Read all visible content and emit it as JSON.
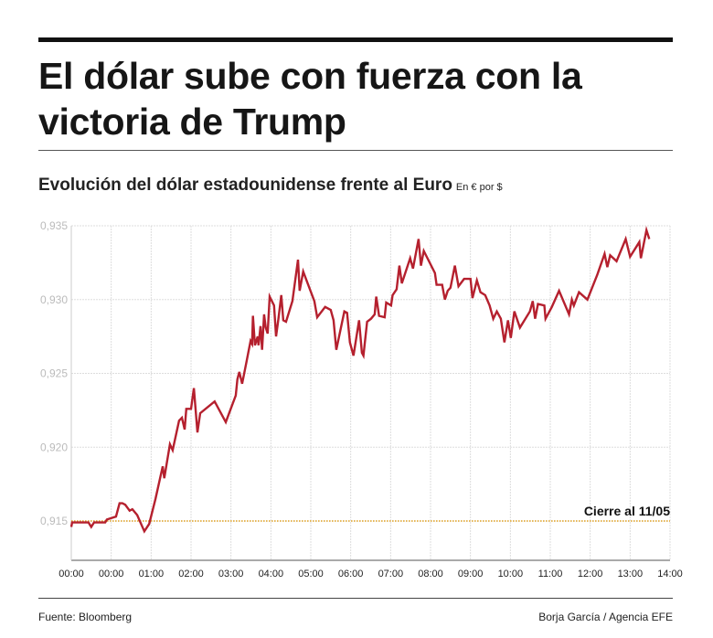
{
  "title": "El dólar sube con fuerza con la victoria de Trump",
  "subtitle": "Evolución del dólar estadounidense frente al Euro",
  "unit": "En  € por $",
  "source": "Fuente: Bloomberg",
  "credit": "Borja García / Agencia EFE",
  "colors": {
    "line": "#b5202e",
    "reference": "#e0a020",
    "grid": "#dddddd"
  },
  "chart_data": {
    "type": "line",
    "title": "Evolución del dólar estadounidense frente al Euro",
    "ylabel": "En € por $",
    "x_tick_labels": [
      "00:00",
      "00:00",
      "01:00",
      "02:00",
      "03:00",
      "04:00",
      "05:00",
      "06:00",
      "07:00",
      "08:00",
      "09:00",
      "10:00",
      "11:00",
      "12:00",
      "13:00",
      "14:00"
    ],
    "y_tick_labels": [
      "0,915",
      "0,920",
      "0,925",
      "0,930",
      "0,935"
    ],
    "y_ticks": [
      0.915,
      0.92,
      0.925,
      0.93,
      0.935
    ],
    "ylim": [
      0.9123,
      0.935
    ],
    "grid": true,
    "reference_line": {
      "value": 0.915,
      "label": "Cierre al 11/05"
    },
    "series": [
      {
        "points": [
          [
            0,
            0.9146
          ],
          [
            0.02,
            0.9149
          ],
          [
            0.09,
            0.9149
          ],
          [
            0.43,
            0.9149
          ],
          [
            0.5,
            0.9146
          ],
          [
            0.57,
            0.9149
          ],
          [
            0.85,
            0.9149
          ],
          [
            0.89,
            0.9151
          ],
          [
            1.12,
            0.9153
          ],
          [
            1.21,
            0.9162
          ],
          [
            1.28,
            0.9162
          ],
          [
            1.35,
            0.9161
          ],
          [
            1.46,
            0.9157
          ],
          [
            1.53,
            0.9158
          ],
          [
            1.65,
            0.9154
          ],
          [
            1.83,
            0.9143
          ],
          [
            1.95,
            0.9148
          ],
          [
            2.11,
            0.9165
          ],
          [
            2.29,
            0.9187
          ],
          [
            2.33,
            0.9179
          ],
          [
            2.47,
            0.9202
          ],
          [
            2.54,
            0.9198
          ],
          [
            2.7,
            0.9218
          ],
          [
            2.77,
            0.922
          ],
          [
            2.84,
            0.9212
          ],
          [
            2.88,
            0.9226
          ],
          [
            3.0,
            0.9226
          ],
          [
            3.07,
            0.924
          ],
          [
            3.16,
            0.921
          ],
          [
            3.23,
            0.9223
          ],
          [
            3.59,
            0.9231
          ],
          [
            3.87,
            0.9217
          ],
          [
            4.12,
            0.9235
          ],
          [
            4.16,
            0.9246
          ],
          [
            4.21,
            0.9251
          ],
          [
            4.28,
            0.9243
          ],
          [
            4.39,
            0.9258
          ],
          [
            4.49,
            0.9272
          ],
          [
            4.53,
            0.927
          ],
          [
            4.55,
            0.9289
          ],
          [
            4.6,
            0.9269
          ],
          [
            4.67,
            0.9275
          ],
          [
            4.69,
            0.9269
          ],
          [
            4.74,
            0.9282
          ],
          [
            4.78,
            0.9266
          ],
          [
            4.83,
            0.929
          ],
          [
            4.87,
            0.9281
          ],
          [
            4.92,
            0.9277
          ],
          [
            4.97,
            0.9302
          ],
          [
            5.08,
            0.9296
          ],
          [
            5.13,
            0.9275
          ],
          [
            5.19,
            0.9287
          ],
          [
            5.26,
            0.9303
          ],
          [
            5.31,
            0.9286
          ],
          [
            5.38,
            0.9285
          ],
          [
            5.54,
            0.9299
          ],
          [
            5.68,
            0.9327
          ],
          [
            5.72,
            0.9306
          ],
          [
            5.81,
            0.9319
          ],
          [
            6.09,
            0.9299
          ],
          [
            6.16,
            0.9288
          ],
          [
            6.36,
            0.9295
          ],
          [
            6.5,
            0.9293
          ],
          [
            6.57,
            0.9286
          ],
          [
            6.64,
            0.9266
          ],
          [
            6.84,
            0.9292
          ],
          [
            6.91,
            0.9291
          ],
          [
            6.98,
            0.9271
          ],
          [
            7.07,
            0.9262
          ],
          [
            7.21,
            0.9286
          ],
          [
            7.28,
            0.9264
          ],
          [
            7.32,
            0.9262
          ],
          [
            7.41,
            0.9285
          ],
          [
            7.51,
            0.9287
          ],
          [
            7.6,
            0.929
          ],
          [
            7.64,
            0.9302
          ],
          [
            7.71,
            0.9289
          ],
          [
            7.85,
            0.9288
          ],
          [
            7.89,
            0.9298
          ],
          [
            8.01,
            0.9296
          ],
          [
            8.05,
            0.9303
          ],
          [
            8.15,
            0.9307
          ],
          [
            8.22,
            0.9323
          ],
          [
            8.28,
            0.9311
          ],
          [
            8.49,
            0.9328
          ],
          [
            8.56,
            0.9321
          ],
          [
            8.7,
            0.9341
          ],
          [
            8.76,
            0.9323
          ],
          [
            8.83,
            0.9333
          ],
          [
            9.11,
            0.9318
          ],
          [
            9.15,
            0.931
          ],
          [
            9.29,
            0.931
          ],
          [
            9.36,
            0.93
          ],
          [
            9.43,
            0.9306
          ],
          [
            9.5,
            0.9308
          ],
          [
            9.61,
            0.9323
          ],
          [
            9.7,
            0.9309
          ],
          [
            9.84,
            0.9314
          ],
          [
            10.0,
            0.9314
          ],
          [
            10.05,
            0.9301
          ],
          [
            10.16,
            0.9313
          ],
          [
            10.25,
            0.9305
          ],
          [
            10.37,
            0.9303
          ],
          [
            10.48,
            0.9296
          ],
          [
            10.57,
            0.9287
          ],
          [
            10.66,
            0.9292
          ],
          [
            10.76,
            0.9287
          ],
          [
            10.85,
            0.9271
          ],
          [
            10.94,
            0.9286
          ],
          [
            11.01,
            0.9274
          ],
          [
            11.1,
            0.9292
          ],
          [
            11.24,
            0.9281
          ],
          [
            11.49,
            0.9292
          ],
          [
            11.56,
            0.9299
          ],
          [
            11.62,
            0.9287
          ],
          [
            11.69,
            0.9297
          ],
          [
            11.85,
            0.9296
          ],
          [
            11.88,
            0.9287
          ],
          [
            12.04,
            0.9295
          ],
          [
            12.22,
            0.9306
          ],
          [
            12.47,
            0.929
          ],
          [
            12.54,
            0.93
          ],
          [
            12.59,
            0.9296
          ],
          [
            12.72,
            0.9305
          ],
          [
            12.93,
            0.93
          ],
          [
            13.18,
            0.9317
          ],
          [
            13.36,
            0.9331
          ],
          [
            13.43,
            0.9322
          ],
          [
            13.5,
            0.933
          ],
          [
            13.66,
            0.9326
          ],
          [
            13.89,
            0.9341
          ],
          [
            14.0,
            0.9329
          ],
          [
            14.23,
            0.9339
          ],
          [
            14.27,
            0.9328
          ],
          [
            14.41,
            0.9347
          ],
          [
            14.48,
            0.9341
          ]
        ]
      }
    ]
  }
}
